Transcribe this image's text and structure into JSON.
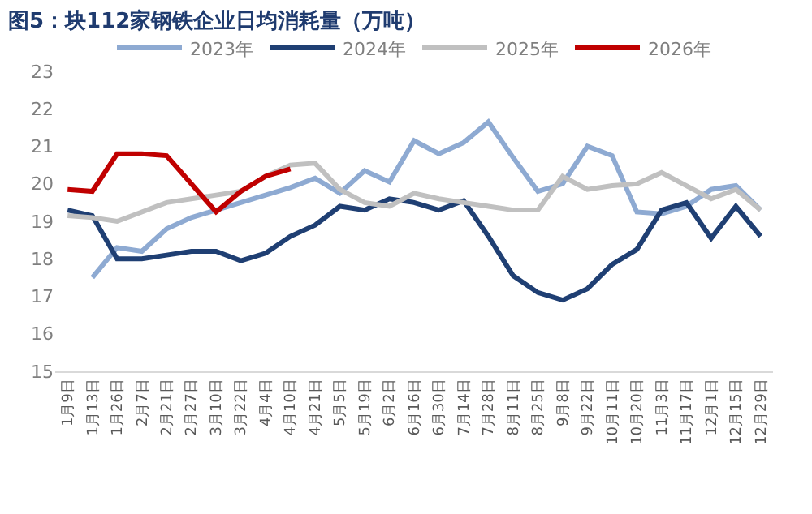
{
  "chart_data": {
    "type": "line",
    "title": "图5：块112家钢铁企业日均消耗量（万吨）",
    "categories": [
      "1月9日",
      "1月13日",
      "1月26日",
      "2月7日",
      "2月21日",
      "2月27日",
      "3月10日",
      "3月22日",
      "4月4日",
      "4月10日",
      "4月21日",
      "5月5日",
      "5月19日",
      "6月2日",
      "6月16日",
      "6月30日",
      "7月14日",
      "7月28日",
      "8月11日",
      "8月25日",
      "9月8日",
      "9月22日",
      "10月11日",
      "10月20日",
      "11月3日",
      "11月17日",
      "12月1日",
      "12月15日",
      "12月29日"
    ],
    "series": [
      {
        "name": "2023年",
        "color": "#8eaad2",
        "values": [
          null,
          17.5,
          18.3,
          18.2,
          18.8,
          19.1,
          19.3,
          19.5,
          19.7,
          19.9,
          20.15,
          19.75,
          20.35,
          20.05,
          21.15,
          20.8,
          21.1,
          21.65,
          20.7,
          19.8,
          20.0,
          21.0,
          20.75,
          19.25,
          19.2,
          19.4,
          19.85,
          19.95,
          19.3
        ]
      },
      {
        "name": "2024年",
        "color": "#1f3f73",
        "values": [
          19.3,
          19.15,
          18.0,
          18.0,
          18.1,
          18.2,
          18.2,
          17.95,
          18.15,
          18.6,
          18.9,
          19.4,
          19.3,
          19.6,
          19.5,
          19.3,
          19.55,
          18.6,
          17.55,
          17.1,
          16.9,
          17.2,
          17.85,
          18.25,
          19.3,
          19.5,
          18.55,
          19.4,
          18.6
        ]
      },
      {
        "name": "2025年",
        "color": "#c0c0c0",
        "values": [
          19.15,
          19.1,
          19.0,
          19.25,
          19.5,
          19.6,
          19.7,
          19.8,
          20.2,
          20.5,
          20.55,
          19.85,
          19.5,
          19.4,
          19.75,
          19.6,
          19.5,
          19.4,
          19.3,
          19.3,
          20.2,
          19.85,
          19.95,
          20.0,
          20.3,
          19.95,
          19.6,
          19.85,
          19.3
        ]
      },
      {
        "name": "2026年",
        "color": "#c00000",
        "values": [
          19.85,
          19.8,
          20.8,
          20.8,
          20.75,
          20.0,
          19.25,
          19.8,
          20.2,
          20.4,
          null,
          null,
          null,
          null,
          null,
          null,
          null,
          null,
          null,
          null,
          null,
          null,
          null,
          null,
          null,
          null,
          null,
          null,
          null
        ]
      }
    ],
    "ylim": [
      15,
      23
    ],
    "yticks": [
      15,
      16,
      17,
      18,
      19,
      20,
      21,
      22,
      23
    ],
    "legend": "top",
    "marker": "none",
    "line_style": "solid"
  }
}
